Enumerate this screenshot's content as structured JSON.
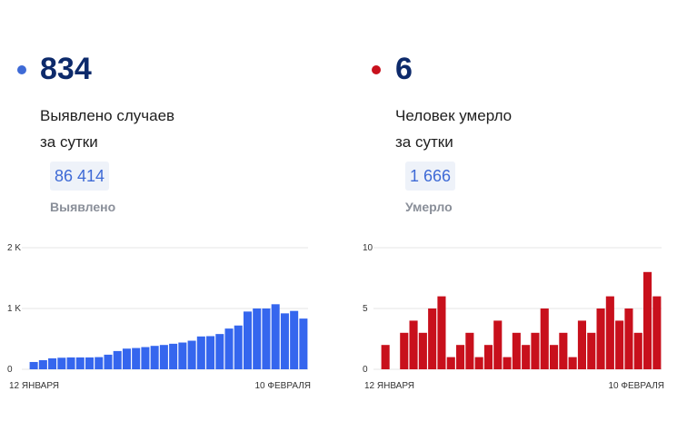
{
  "colors": {
    "cases": "#3566ee",
    "deaths": "#c8101c",
    "dot_cases": "#3e6ad6",
    "dot_deaths": "#c8101c"
  },
  "cases": {
    "value": "834",
    "caption": "Выявлено случаев\nза сутки",
    "total": "86 414",
    "total_label": "Выявлено"
  },
  "deaths": {
    "value": "6",
    "caption": "Человек умерло\nза сутки",
    "total": "1 666",
    "total_label": "Умерло"
  },
  "chart_data": [
    {
      "type": "bar",
      "x_start_label": "12 ЯНВАРЯ",
      "x_end_label": "10 ФЕВРАЛЯ",
      "ylim": [
        0,
        2000
      ],
      "yticks": [
        0,
        1000,
        2000
      ],
      "ytick_labels": [
        "0",
        "1 K",
        "2 K"
      ],
      "values": [
        120,
        150,
        180,
        190,
        195,
        195,
        195,
        200,
        240,
        300,
        340,
        350,
        365,
        385,
        400,
        420,
        440,
        470,
        540,
        545,
        580,
        670,
        720,
        950,
        1000,
        1000,
        1070,
        920,
        960,
        834
      ]
    },
    {
      "type": "bar",
      "x_start_label": "12 ЯНВАРЯ",
      "x_end_label": "10 ФЕВРАЛЯ",
      "ylim": [
        0,
        10
      ],
      "yticks": [
        0,
        5,
        10
      ],
      "ytick_labels": [
        "0",
        "5",
        "10"
      ],
      "values": [
        2,
        0,
        3,
        4,
        3,
        5,
        6,
        1,
        2,
        3,
        1,
        2,
        4,
        1,
        3,
        2,
        3,
        5,
        2,
        3,
        1,
        4,
        3,
        5,
        6,
        4,
        5,
        3,
        8,
        6
      ]
    }
  ]
}
